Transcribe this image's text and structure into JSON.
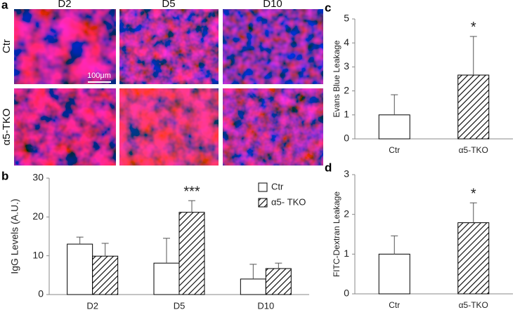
{
  "figure": {
    "panel_labels": [
      "a",
      "b",
      "c",
      "d"
    ],
    "images": {
      "columns": [
        "D2",
        "D5",
        "D10"
      ],
      "rows": [
        "Ctr",
        "α5-TKO"
      ],
      "scale_bar": "100μm"
    }
  },
  "chart_data": [
    {
      "type": "bar",
      "ylabel": "IgG Levels (A.U.)",
      "categories": [
        "D2",
        "D5",
        "D10"
      ],
      "series": [
        {
          "name": "Ctr",
          "color": "#ffffff",
          "hatch": false,
          "values": [
            13.0,
            8.1,
            4.0
          ],
          "errors": [
            1.8,
            6.4,
            3.8
          ]
        },
        {
          "name": "α5- TKO",
          "color": "#ffffff",
          "hatch": true,
          "values": [
            9.9,
            21.2,
            6.7
          ],
          "errors": [
            3.3,
            3.0,
            1.4
          ]
        }
      ],
      "annotations": [
        "***"
      ],
      "ylim": [
        0,
        30
      ],
      "yticks": [
        0,
        10,
        20,
        30
      ],
      "legend": "upper right"
    },
    {
      "type": "bar",
      "ylabel": "Evans Blue Leakage",
      "categories": [
        "Ctr",
        "α5-TKO"
      ],
      "values": [
        1.0,
        2.66
      ],
      "errors": [
        0.84,
        1.61
      ],
      "hatch": [
        false,
        true
      ],
      "color": "#ffffff",
      "annotations": [
        "*"
      ],
      "ylim": [
        0,
        5
      ],
      "yticks": [
        0,
        1,
        2,
        3,
        4,
        5
      ]
    },
    {
      "type": "bar",
      "ylabel": "FITC-Dextran Leakage",
      "categories": [
        "Ctr",
        "α5-TKO"
      ],
      "values": [
        1.0,
        1.79
      ],
      "errors": [
        0.46,
        0.5
      ],
      "hatch": [
        false,
        true
      ],
      "color": "#ffffff",
      "annotations": [
        "*"
      ],
      "ylim": [
        0,
        3
      ],
      "yticks": [
        0,
        1,
        2,
        3
      ]
    }
  ]
}
